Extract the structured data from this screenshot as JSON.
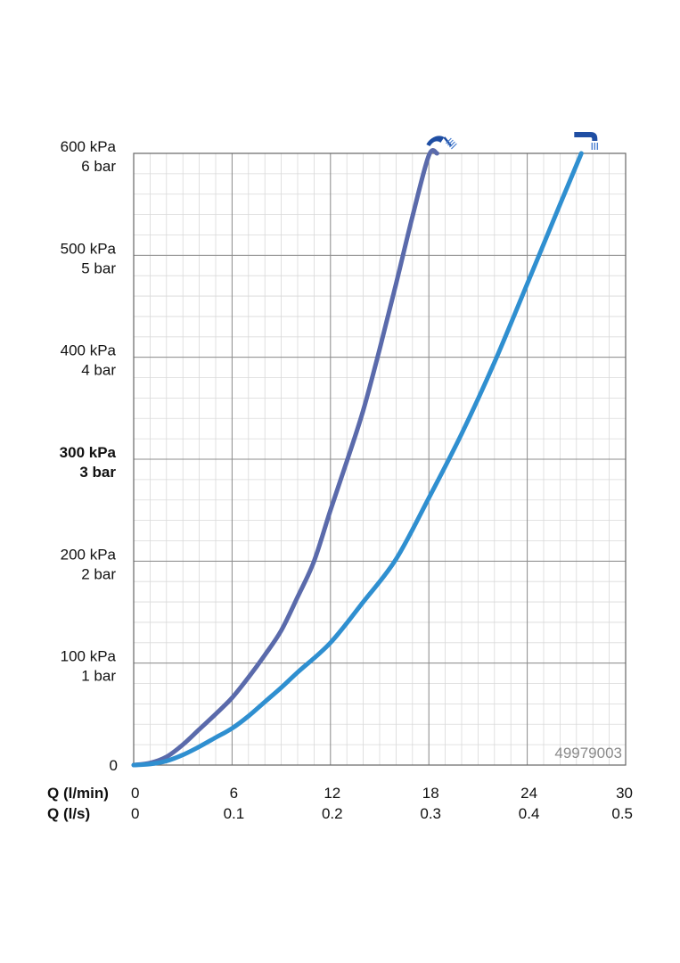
{
  "chart_data": {
    "type": "line",
    "code": "49979003",
    "xlim": [
      0,
      30
    ],
    "ylim": [
      0,
      6
    ],
    "x_axis": {
      "rows": [
        {
          "label": "Q (l/min)",
          "ticks": [
            "0",
            "6",
            "12",
            "18",
            "24",
            "30"
          ]
        },
        {
          "label": "Q (l/s)",
          "ticks": [
            "0",
            "0.1",
            "0.2",
            "0.3",
            "0.4",
            "0.5"
          ]
        }
      ],
      "tick_values": [
        0,
        6,
        12,
        18,
        24,
        30
      ]
    },
    "y_axis": {
      "ticks": [
        {
          "value": 0,
          "line1": "0",
          "line2": "",
          "bold": false
        },
        {
          "value": 1,
          "line1": "100 kPa",
          "line2": "1 bar",
          "bold": false
        },
        {
          "value": 2,
          "line1": "200 kPa",
          "line2": "2 bar",
          "bold": false
        },
        {
          "value": 3,
          "line1": "300 kPa",
          "line2": "3 bar",
          "bold": true
        },
        {
          "value": 4,
          "line1": "400 kPa",
          "line2": "4 bar",
          "bold": false
        },
        {
          "value": 5,
          "line1": "500 kPa",
          "line2": "5 bar",
          "bold": false
        },
        {
          "value": 6,
          "line1": "600 kPa",
          "line2": "6 bar",
          "bold": false
        }
      ]
    },
    "grid": true,
    "series": [
      {
        "icon": "shower-head-icon",
        "color": "#5a6aab",
        "points": [
          [
            0,
            0
          ],
          [
            1,
            0.02
          ],
          [
            2,
            0.08
          ],
          [
            3,
            0.2
          ],
          [
            4,
            0.35
          ],
          [
            5,
            0.5
          ],
          [
            6,
            0.66
          ],
          [
            7,
            0.86
          ],
          [
            8,
            1.08
          ],
          [
            9,
            1.32
          ],
          [
            10,
            1.65
          ],
          [
            11,
            2.0
          ],
          [
            12,
            2.5
          ],
          [
            13,
            2.98
          ],
          [
            14,
            3.48
          ],
          [
            15,
            4.08
          ],
          [
            16,
            4.72
          ],
          [
            17,
            5.38
          ],
          [
            18,
            5.98
          ],
          [
            18.5,
            6.0
          ]
        ]
      },
      {
        "icon": "bath-spout-icon",
        "color": "#2f8fd0",
        "points": [
          [
            0,
            0
          ],
          [
            1,
            0.01
          ],
          [
            2,
            0.04
          ],
          [
            3,
            0.1
          ],
          [
            4,
            0.18
          ],
          [
            5,
            0.27
          ],
          [
            6,
            0.36
          ],
          [
            7,
            0.48
          ],
          [
            8,
            0.62
          ],
          [
            9,
            0.76
          ],
          [
            10,
            0.91
          ],
          [
            12,
            1.2
          ],
          [
            14,
            1.6
          ],
          [
            16,
            2.02
          ],
          [
            18,
            2.62
          ],
          [
            20,
            3.25
          ],
          [
            22,
            3.95
          ],
          [
            24,
            4.72
          ],
          [
            26,
            5.5
          ],
          [
            27.3,
            6.0
          ]
        ]
      }
    ]
  }
}
